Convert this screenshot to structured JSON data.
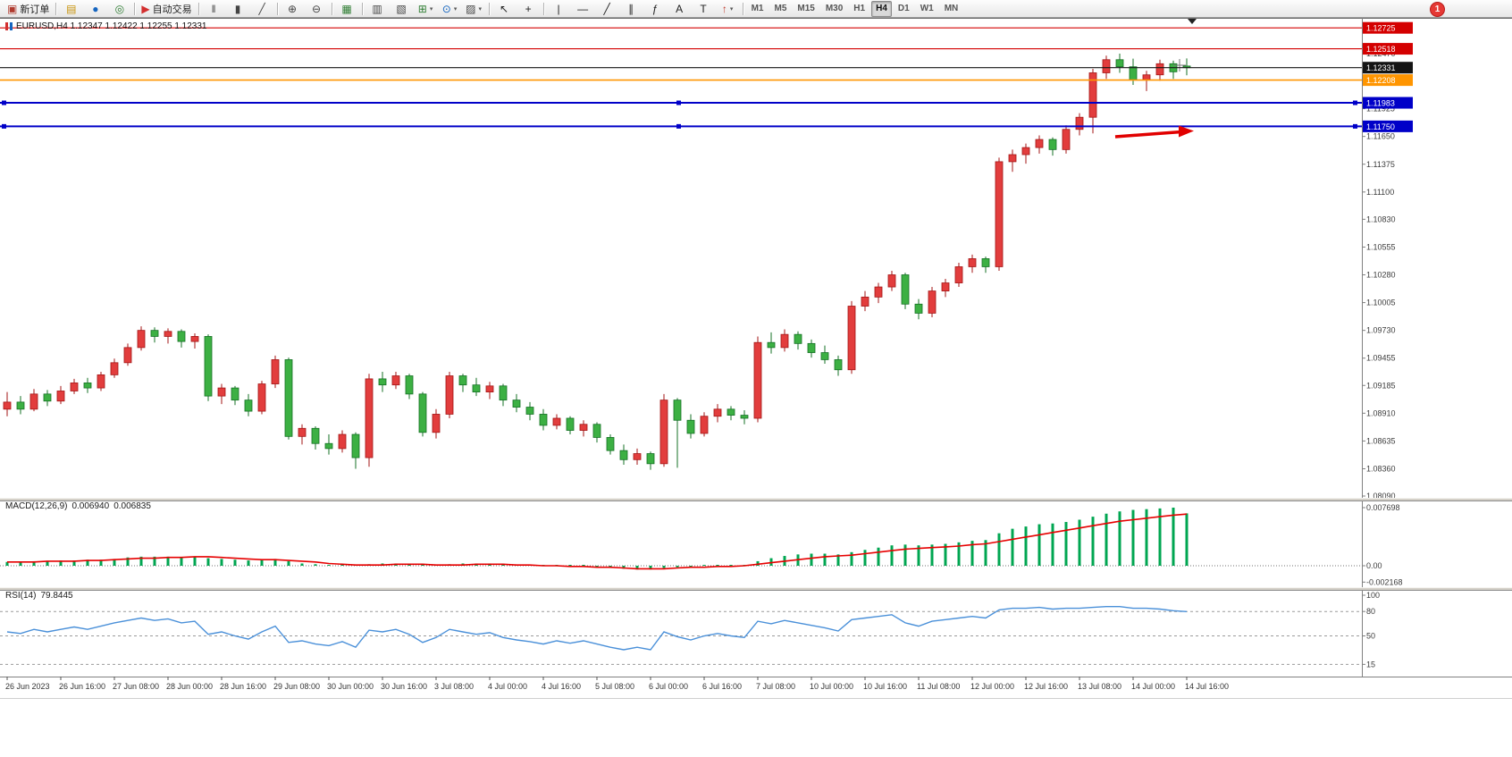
{
  "toolbar": {
    "notification_count": "1",
    "timeframes": [
      "M1",
      "M5",
      "M15",
      "M30",
      "H1",
      "H4",
      "D1",
      "W1",
      "MN"
    ],
    "active_timeframe": "H4",
    "groups": [
      {
        "items": [
          {
            "name": "new-order-button",
            "icon": "new-order-icon",
            "glyph": "▣",
            "color": "#b03a2e",
            "label": "新订单"
          }
        ]
      },
      {
        "items": [
          {
            "name": "charts-button",
            "icon": "chart-window-icon",
            "glyph": "▤",
            "color": "#c8930a"
          },
          {
            "name": "profiles-button",
            "icon": "profiles-icon",
            "glyph": "●",
            "color": "#1565c0"
          },
          {
            "name": "refresh-button",
            "icon": "refresh-icon",
            "glyph": "◎",
            "color": "#2e7d32"
          }
        ]
      },
      {
        "items": [
          {
            "name": "auto-trading-button",
            "icon": "auto-trading-icon",
            "glyph": "▶",
            "color": "#d32f2f",
            "label": "自动交易"
          }
        ]
      },
      {
        "items": [
          {
            "name": "bar-chart-button",
            "icon": "ohlc-bars-icon",
            "glyph": "‖",
            "color": "#444444"
          },
          {
            "name": "candlestick-button",
            "icon": "candlestick-icon",
            "glyph": "▮",
            "color": "#444444"
          },
          {
            "name": "line-chart-button",
            "icon": "line-chart-icon",
            "glyph": "╱",
            "color": "#444444"
          }
        ]
      },
      {
        "items": [
          {
            "name": "zoom-in-button",
            "icon": "zoom-in-icon",
            "glyph": "⊕",
            "color": "#444444"
          },
          {
            "name": "zoom-out-button",
            "icon": "zoom-out-icon",
            "glyph": "⊖",
            "color": "#444444"
          }
        ]
      },
      {
        "items": [
          {
            "name": "tile-windows-button",
            "icon": "tile-windows-icon",
            "glyph": "▦",
            "color": "#2e7d32"
          }
        ]
      },
      {
        "items": [
          {
            "name": "data-window-button",
            "icon": "data-window-icon",
            "glyph": "▥",
            "color": "#444444"
          },
          {
            "name": "navigator-button",
            "icon": "navigator-icon",
            "glyph": "▧",
            "color": "#444444"
          },
          {
            "name": "indicators-button",
            "icon": "indicators-icon",
            "glyph": "⊞",
            "color": "#2e7d32",
            "caret": true
          },
          {
            "name": "periods-button",
            "icon": "clock-icon",
            "glyph": "⊙",
            "color": "#1565c0",
            "caret": true
          },
          {
            "name": "templates-button",
            "icon": "template-icon",
            "glyph": "▨",
            "color": "#444444",
            "caret": true
          }
        ]
      },
      {
        "items": [
          {
            "name": "cursor-button",
            "icon": "cursor-icon",
            "glyph": "↖",
            "color": "#222222"
          },
          {
            "name": "crosshair-button",
            "icon": "crosshair-icon",
            "glyph": "+",
            "color": "#222222"
          }
        ]
      },
      {
        "items": [
          {
            "name": "vertical-line-button",
            "icon": "vertical-line-icon",
            "glyph": "|",
            "color": "#222222"
          },
          {
            "name": "horizontal-line-button",
            "icon": "horizontal-line-icon",
            "glyph": "—",
            "color": "#222222"
          },
          {
            "name": "trendline-button",
            "icon": "trendline-icon",
            "glyph": "╱",
            "color": "#222222"
          },
          {
            "name": "channel-button",
            "icon": "channel-icon",
            "glyph": "∥",
            "color": "#222222"
          },
          {
            "name": "fibonacci-button",
            "icon": "fibonacci-icon",
            "glyph": "ƒ",
            "color": "#222222"
          },
          {
            "name": "text-button",
            "icon": "text-icon",
            "glyph": "A",
            "color": "#222222"
          },
          {
            "name": "label-button",
            "icon": "text-label-icon",
            "glyph": "T",
            "color": "#222222"
          },
          {
            "name": "arrows-button",
            "icon": "arrow-shapes-icon",
            "glyph": "↑",
            "color": "#c0392b",
            "caret": true
          }
        ]
      }
    ]
  },
  "chart": {
    "symbol_info": "EURUSD,H4 1.12347 1.12422 1.12255 1.12331"
  },
  "macd": {
    "name": "MACD(12,26,9)",
    "value_main": "0.006940",
    "value_signal": "0.006835"
  },
  "rsi": {
    "name": "RSI(14)",
    "value": "79.8445"
  },
  "chart_data": {
    "type": "candlestick",
    "symbol": "EURUSD",
    "timeframe": "H4",
    "colors": {
      "up": "#e23d3d",
      "up_stroke": "#a31515",
      "down": "#3cb043",
      "down_stroke": "#147024",
      "macd": "#00a651",
      "signal": "#e60000",
      "rsi": "#4a90d9"
    },
    "price_axis": [
      "1.12470",
      "1.11925",
      "1.11650",
      "1.11375",
      "1.11100",
      "1.10830",
      "1.10555",
      "1.10280",
      "1.10005",
      "1.09730",
      "1.09455",
      "1.09185",
      "1.08910",
      "1.08635",
      "1.08360",
      "1.08090"
    ],
    "levels": [
      {
        "price": "1.12725",
        "color": "#d40000",
        "width": 1.2
      },
      {
        "price": "1.12518",
        "color": "#d40000",
        "width": 1.2
      },
      {
        "price": "1.12331",
        "color": "#141414",
        "width": 1.2
      },
      {
        "price": "1.12208",
        "color": "#ff9500",
        "width": 1.6
      },
      {
        "price": "1.11983",
        "color": "#0000c8",
        "width": 2,
        "handles": true
      },
      {
        "price": "1.11750",
        "color": "#0000c8",
        "width": 2,
        "handles": true
      }
    ],
    "times": [
      "26 Jun 2023",
      "26 Jun 16:00",
      "27 Jun 08:00",
      "28 Jun 00:00",
      "28 Jun 16:00",
      "29 Jun 08:00",
      "30 Jun 00:00",
      "30 Jun 16:00",
      "3 Jul 08:00",
      "4 Jul 00:00",
      "4 Jul 16:00",
      "5 Jul 08:00",
      "6 Jul 00:00",
      "6 Jul 16:00",
      "7 Jul 08:00",
      "10 Jul 00:00",
      "10 Jul 16:00",
      "11 Jul 08:00",
      "12 Jul 00:00",
      "12 Jul 16:00",
      "13 Jul 08:00",
      "14 Jul 00:00",
      "14 Jul 16:00"
    ],
    "label_every": 4,
    "ohlc": [
      [
        1.0895,
        1.0912,
        1.0888,
        1.0902
      ],
      [
        1.0902,
        1.0908,
        1.089,
        1.0895
      ],
      [
        1.0895,
        1.0915,
        1.0893,
        1.091
      ],
      [
        1.091,
        1.0914,
        1.0898,
        1.0903
      ],
      [
        1.0903,
        1.0918,
        1.09,
        1.0913
      ],
      [
        1.0913,
        1.0925,
        1.091,
        1.0921
      ],
      [
        1.0921,
        1.0926,
        1.0911,
        1.0916
      ],
      [
        1.0916,
        1.0932,
        1.0913,
        1.0929
      ],
      [
        1.0929,
        1.0945,
        1.0926,
        1.0941
      ],
      [
        1.0941,
        1.096,
        1.0938,
        1.0956
      ],
      [
        1.0956,
        1.0977,
        1.0953,
        1.0973
      ],
      [
        1.0973,
        1.0976,
        1.0961,
        1.0967
      ],
      [
        1.0967,
        1.0975,
        1.096,
        1.0972
      ],
      [
        1.0972,
        1.0974,
        1.0956,
        1.0962
      ],
      [
        1.0962,
        1.097,
        1.0955,
        1.0967
      ],
      [
        1.0967,
        1.0969,
        1.0903,
        1.0908
      ],
      [
        1.0908,
        1.092,
        1.09,
        1.0916
      ],
      [
        1.0916,
        1.0918,
        1.0899,
        1.0904
      ],
      [
        1.0904,
        1.091,
        1.0888,
        1.0893
      ],
      [
        1.0893,
        1.0923,
        1.089,
        1.092
      ],
      [
        1.092,
        1.0948,
        1.0916,
        1.0944
      ],
      [
        1.0944,
        1.0946,
        1.0865,
        1.0868
      ],
      [
        1.0868,
        1.088,
        1.086,
        1.0876
      ],
      [
        1.0876,
        1.0878,
        1.0855,
        1.0861
      ],
      [
        1.0861,
        1.087,
        1.085,
        1.0856
      ],
      [
        1.0856,
        1.0874,
        1.0852,
        1.087
      ],
      [
        1.087,
        1.0872,
        1.0836,
        1.0847
      ],
      [
        1.0847,
        1.093,
        1.0838,
        1.0925
      ],
      [
        1.0925,
        1.0932,
        1.0912,
        1.0919
      ],
      [
        1.0919,
        1.0932,
        1.0915,
        1.0928
      ],
      [
        1.0928,
        1.093,
        1.0905,
        1.091
      ],
      [
        1.091,
        1.0912,
        1.0868,
        1.0872
      ],
      [
        1.0872,
        1.0895,
        1.0866,
        1.089
      ],
      [
        1.089,
        1.0932,
        1.0886,
        1.0928
      ],
      [
        1.0928,
        1.093,
        1.0912,
        1.0919
      ],
      [
        1.0919,
        1.0926,
        1.0908,
        1.0912
      ],
      [
        1.0912,
        1.0922,
        1.0905,
        1.0918
      ],
      [
        1.0918,
        1.092,
        1.0898,
        1.0904
      ],
      [
        1.0904,
        1.091,
        1.0892,
        1.0897
      ],
      [
        1.0897,
        1.0902,
        1.0884,
        1.089
      ],
      [
        1.089,
        1.0895,
        1.0874,
        1.0879
      ],
      [
        1.0879,
        1.089,
        1.0875,
        1.0886
      ],
      [
        1.0886,
        1.0888,
        1.087,
        1.0874
      ],
      [
        1.0874,
        1.0884,
        1.0868,
        1.088
      ],
      [
        1.088,
        1.0882,
        1.0862,
        1.0867
      ],
      [
        1.0867,
        1.087,
        1.085,
        1.0854
      ],
      [
        1.0854,
        1.086,
        1.084,
        1.0845
      ],
      [
        1.0845,
        1.0856,
        1.084,
        1.0851
      ],
      [
        1.0851,
        1.0853,
        1.0835,
        1.0841
      ],
      [
        1.0841,
        1.091,
        1.0838,
        1.0904
      ],
      [
        1.0904,
        1.0906,
        1.0837,
        1.0884
      ],
      [
        1.0884,
        1.089,
        1.0866,
        1.0871
      ],
      [
        1.0871,
        1.0892,
        1.0868,
        1.0888
      ],
      [
        1.0888,
        1.09,
        1.0882,
        1.0895
      ],
      [
        1.0895,
        1.0898,
        1.0884,
        1.0889
      ],
      [
        1.0889,
        1.0894,
        1.088,
        1.0886
      ],
      [
        1.0886,
        1.0967,
        1.0882,
        1.0961
      ],
      [
        1.0961,
        1.0971,
        1.095,
        1.0956
      ],
      [
        1.0956,
        1.0974,
        1.0952,
        1.0969
      ],
      [
        1.0969,
        1.0972,
        1.0954,
        1.096
      ],
      [
        1.096,
        1.0964,
        1.0946,
        1.0951
      ],
      [
        1.0951,
        1.0958,
        1.094,
        1.0944
      ],
      [
        1.0944,
        1.0948,
        1.0928,
        1.0934
      ],
      [
        1.0934,
        1.1002,
        1.093,
        1.0997
      ],
      [
        1.0997,
        1.1012,
        1.0992,
        1.1006
      ],
      [
        1.1006,
        1.102,
        1.1,
        1.1016
      ],
      [
        1.1016,
        1.1032,
        1.1012,
        1.1028
      ],
      [
        1.1028,
        1.103,
        1.0994,
        1.0999
      ],
      [
        1.0999,
        1.1004,
        1.0984,
        1.099
      ],
      [
        1.099,
        1.1016,
        1.0986,
        1.1012
      ],
      [
        1.1012,
        1.1024,
        1.1006,
        1.102
      ],
      [
        1.102,
        1.104,
        1.1016,
        1.1036
      ],
      [
        1.1036,
        1.1048,
        1.103,
        1.1044
      ],
      [
        1.1044,
        1.1046,
        1.103,
        1.1036
      ],
      [
        1.1036,
        1.1144,
        1.1032,
        1.114
      ],
      [
        1.114,
        1.1152,
        1.113,
        1.1147
      ],
      [
        1.1147,
        1.1158,
        1.1138,
        1.1154
      ],
      [
        1.1154,
        1.1166,
        1.1148,
        1.1162
      ],
      [
        1.1162,
        1.1164,
        1.1146,
        1.1152
      ],
      [
        1.1152,
        1.1176,
        1.1148,
        1.1172
      ],
      [
        1.1172,
        1.1188,
        1.1166,
        1.1184
      ],
      [
        1.1184,
        1.1232,
        1.1168,
        1.1228
      ],
      [
        1.1228,
        1.1245,
        1.1222,
        1.1241
      ],
      [
        1.1241,
        1.1247,
        1.1228,
        1.1234
      ],
      [
        1.1234,
        1.1242,
        1.1216,
        1.1221
      ],
      [
        1.1221,
        1.123,
        1.121,
        1.1226
      ],
      [
        1.1226,
        1.1241,
        1.122,
        1.1237
      ],
      [
        1.1237,
        1.124,
        1.1222,
        1.1229
      ],
      [
        1.12347,
        1.12422,
        1.12255,
        1.12331
      ]
    ],
    "macd": {
      "axis": [
        "0.007698",
        "0.00",
        "-0.002168"
      ],
      "hist": [
        0.0005,
        0.0005,
        0.0006,
        0.0006,
        0.0007,
        0.0007,
        0.0008,
        0.0008,
        0.0009,
        0.0011,
        0.0012,
        0.0012,
        0.0012,
        0.0011,
        0.0012,
        0.001,
        0.0009,
        0.0008,
        0.0007,
        0.0008,
        0.0009,
        0.0006,
        0.0003,
        0.0002,
        0.0001,
        0.0001,
        0.0,
        0.0002,
        0.0003,
        0.0003,
        0.0002,
        0.0001,
        0.0001,
        0.0002,
        0.0003,
        0.0003,
        0.0003,
        0.0002,
        0.0001,
        0.0001,
        0.0,
        0.0,
        -0.0001,
        -0.0001,
        -0.0002,
        -0.0003,
        -0.0004,
        -0.0005,
        -0.0005,
        -0.0003,
        -0.0002,
        -0.0002,
        -0.0001,
        0.0,
        0.0,
        0.0,
        0.0006,
        0.001,
        0.0013,
        0.0015,
        0.0016,
        0.0016,
        0.0015,
        0.0018,
        0.0021,
        0.0024,
        0.0027,
        0.0028,
        0.0027,
        0.0028,
        0.0029,
        0.0031,
        0.0033,
        0.0034,
        0.0043,
        0.0049,
        0.0052,
        0.0055,
        0.0056,
        0.0058,
        0.0061,
        0.0065,
        0.0069,
        0.0072,
        0.0074,
        0.0075,
        0.0076,
        0.0077,
        0.00694
      ],
      "signal": [
        0.0005,
        0.0005,
        0.0005,
        0.0006,
        0.0006,
        0.0006,
        0.0007,
        0.0007,
        0.0008,
        0.0009,
        0.001,
        0.001,
        0.0011,
        0.0011,
        0.0012,
        0.0012,
        0.0011,
        0.001,
        0.0009,
        0.0008,
        0.0008,
        0.0007,
        0.0006,
        0.0005,
        0.0003,
        0.0002,
        0.0001,
        0.0001,
        0.0001,
        0.0002,
        0.0002,
        0.0002,
        0.0001,
        0.0001,
        0.0001,
        0.0002,
        0.0002,
        0.0002,
        0.0001,
        0.0001,
        0.0,
        0.0,
        -0.0001,
        -0.0001,
        -0.0002,
        -0.0002,
        -0.0003,
        -0.0004,
        -0.0004,
        -0.0004,
        -0.0003,
        -0.0002,
        -0.0002,
        -0.0001,
        -0.0001,
        0.0,
        0.0002,
        0.0004,
        0.0006,
        0.0008,
        0.001,
        0.0012,
        0.0013,
        0.0014,
        0.0016,
        0.0018,
        0.002,
        0.0022,
        0.0023,
        0.0024,
        0.0025,
        0.0026,
        0.0028,
        0.0029,
        0.0032,
        0.0035,
        0.0038,
        0.0041,
        0.0044,
        0.0047,
        0.005,
        0.0053,
        0.0056,
        0.0059,
        0.0061,
        0.0063,
        0.0065,
        0.0067,
        0.00684
      ]
    },
    "rsi": {
      "axis": [
        "100",
        "80",
        "50",
        "15"
      ],
      "levels": [
        80,
        50,
        15
      ],
      "values": [
        55,
        53,
        58,
        55,
        58,
        61,
        58,
        62,
        66,
        69,
        72,
        69,
        71,
        66,
        68,
        52,
        55,
        50,
        46,
        55,
        62,
        42,
        44,
        40,
        38,
        43,
        36,
        57,
        55,
        58,
        52,
        42,
        48,
        58,
        55,
        52,
        54,
        48,
        45,
        43,
        40,
        44,
        41,
        44,
        40,
        36,
        33,
        36,
        33,
        55,
        49,
        45,
        50,
        53,
        50,
        48,
        68,
        65,
        69,
        66,
        63,
        60,
        56,
        70,
        72,
        74,
        76,
        66,
        62,
        68,
        70,
        72,
        74,
        72,
        82,
        84,
        84,
        85,
        83,
        84,
        84,
        85,
        86,
        86,
        84,
        84,
        83,
        81,
        79.84
      ]
    },
    "annotations": [
      {
        "type": "arrow",
        "from": [
          1248,
          153
        ],
        "to": [
          1336,
          146.5
        ],
        "color": "#e10000"
      }
    ]
  }
}
